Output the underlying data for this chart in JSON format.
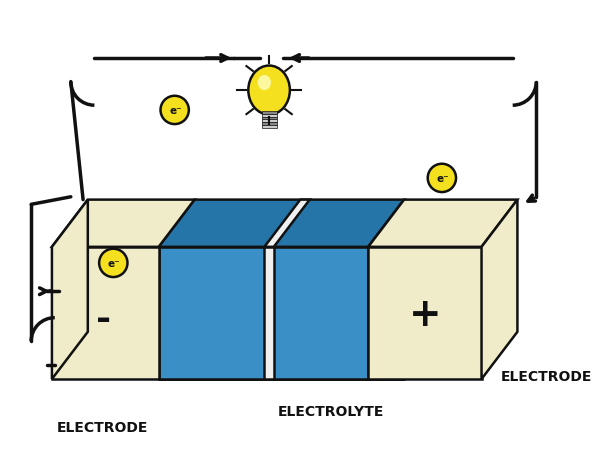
{
  "bg_color": "#ffffff",
  "electrode_color": "#f0ecca",
  "electrode_edge": "#111111",
  "electrolyte_color_front": "#3a8fc7",
  "electrolyte_color_top": "#2575a8",
  "electrolyte_color_side": "#1e6090",
  "separator_color": "#f0f0f0",
  "electron_circle_color": "#f5e020",
  "electron_circle_edge": "#111111",
  "arrow_color": "#111111",
  "label_color": "#111111",
  "bulb_yellow": "#f5e020",
  "bulb_white": "#ffffff",
  "minus_label": "-",
  "plus_label": "+",
  "electrode_label": "ELECTRODE",
  "electrolyte_label": "ELECTROLYTE",
  "electron_symbol": "e⁻",
  "wire_lw": 2.5,
  "edge_lw": 1.8
}
